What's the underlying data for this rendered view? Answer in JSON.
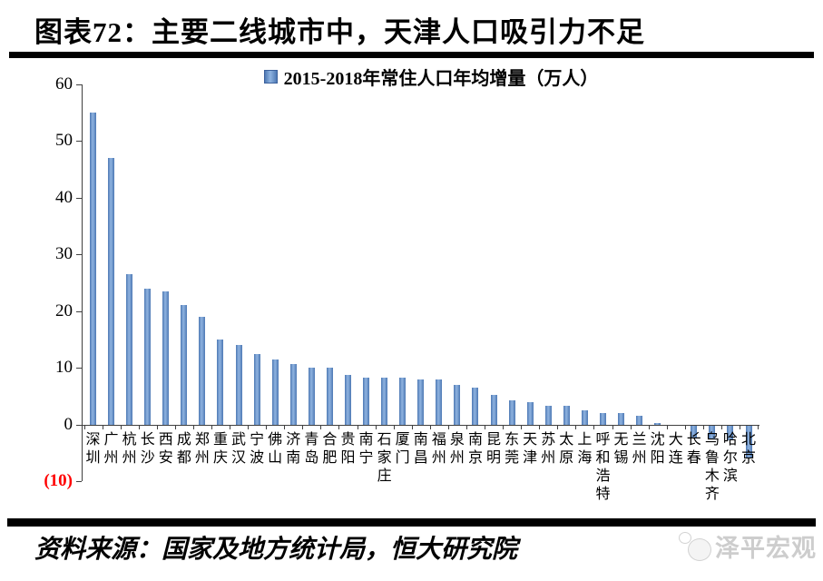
{
  "title": "图表72：主要二线城市中，天津人口吸引力不足",
  "chart_data": {
    "type": "bar",
    "title": "2015-2018年常住人口年均增量（万人）",
    "legend": [
      "2015-2018年常住人口年均增量（万人）"
    ],
    "legend_position": "top-center",
    "categories": [
      "深圳",
      "广州",
      "杭州",
      "长沙",
      "西安",
      "成都",
      "郑州",
      "重庆",
      "武汉",
      "宁波",
      "佛山",
      "济南",
      "青岛",
      "合肥",
      "贵阳",
      "南宁",
      "石家庄",
      "厦门",
      "南昌",
      "福州",
      "泉州",
      "南京",
      "昆明",
      "东莞",
      "天津",
      "苏州",
      "太原",
      "上海",
      "呼和浩特",
      "无锡",
      "兰州",
      "沈阳",
      "大连",
      "长春",
      "乌鲁木齐",
      "哈尔滨",
      "北京"
    ],
    "values": [
      55,
      47,
      26.5,
      24,
      23.5,
      21,
      19,
      15,
      14,
      12.5,
      11.5,
      10.7,
      10,
      10,
      8.7,
      8.3,
      8.3,
      8.3,
      8,
      7.9,
      7,
      6.5,
      5.2,
      4.2,
      4,
      3.3,
      3.3,
      2.5,
      2,
      2,
      1.6,
      0.3,
      0,
      -2.2,
      -2.4,
      -2.6,
      -5.8
    ],
    "xlabel": "",
    "ylabel": "",
    "ylim": [
      -10,
      60
    ],
    "yticks": [
      60,
      50,
      40,
      30,
      20,
      10,
      0,
      -10
    ],
    "ytick_labels": [
      "60",
      "50",
      "40",
      "30",
      "20",
      "10",
      "0",
      "(10)"
    ],
    "grid": false,
    "bar_color": "#4F81BD",
    "bar_highlight": "#8FB3E0",
    "axis_color": "#404040",
    "negative_tick_label_color": "#FF0000"
  },
  "footer": {
    "source": "资料来源：国家及地方统计局，恒大研究院",
    "watermark": "泽平宏观"
  }
}
